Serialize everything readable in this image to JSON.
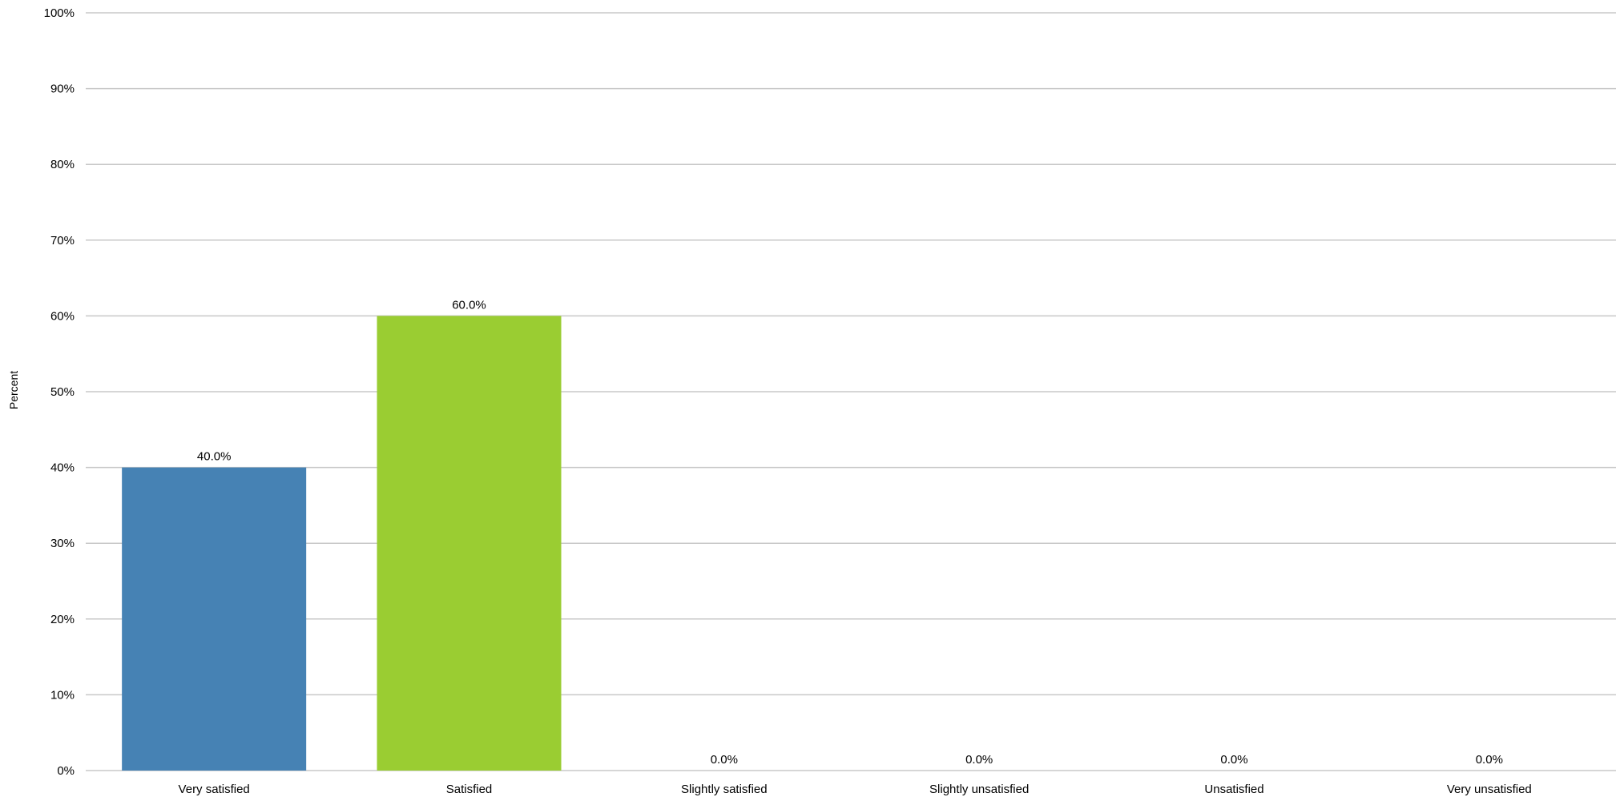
{
  "chart_data": {
    "type": "bar",
    "title": "",
    "xlabel": "",
    "ylabel": "Percent",
    "ylim": [
      0,
      100
    ],
    "yticks": [
      0,
      10,
      20,
      30,
      40,
      50,
      60,
      70,
      80,
      90,
      100
    ],
    "ytick_labels": [
      "0%",
      "10%",
      "20%",
      "30%",
      "40%",
      "50%",
      "60%",
      "70%",
      "80%",
      "90%",
      "100%"
    ],
    "grid": true,
    "legend": "none",
    "categories": [
      "Very satisfied",
      "Satisfied",
      "Slightly satisfied",
      "Slightly unsatisfied",
      "Unsatisfied",
      "Very unsatisfied"
    ],
    "values": [
      40.0,
      60.0,
      0.0,
      0.0,
      0.0,
      0.0
    ],
    "data_labels": [
      "40.0%",
      "60.0%",
      "0.0%",
      "0.0%",
      "0.0%",
      "0.0%"
    ],
    "colors": [
      "#4682B4",
      "#9ACD32",
      "#4682B4",
      "#4682B4",
      "#4682B4",
      "#4682B4"
    ],
    "gridline_color": "#C8C8C8"
  }
}
